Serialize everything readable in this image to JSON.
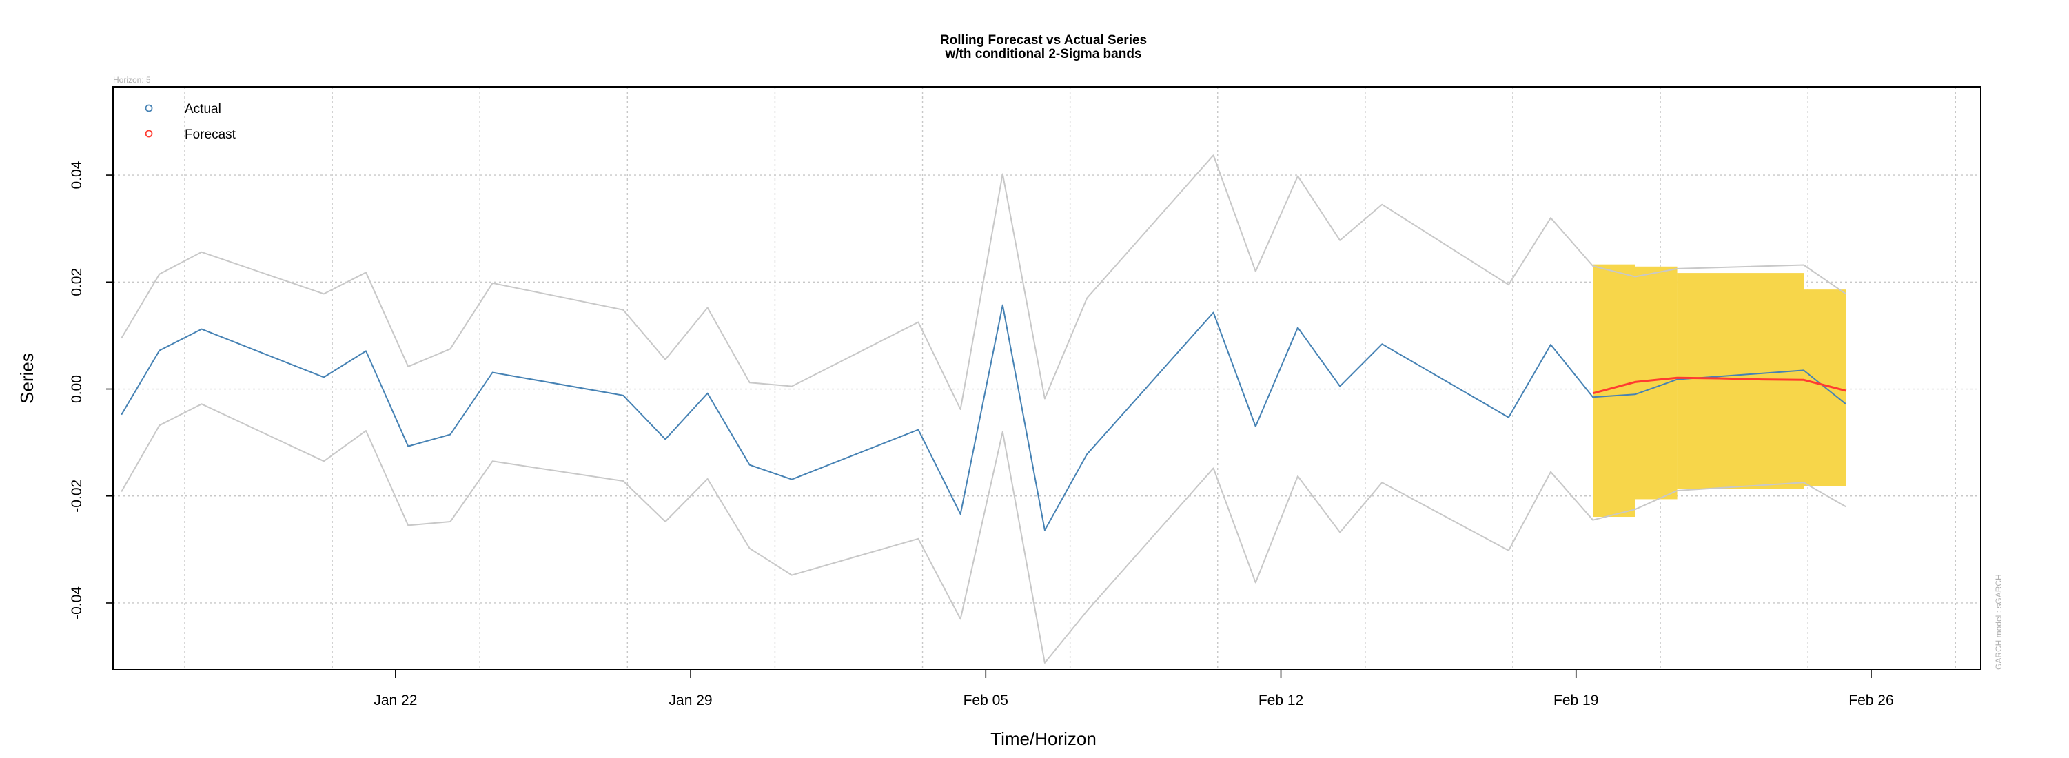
{
  "chart_data": {
    "type": "line",
    "title": "Rolling Forecast vs Actual Series",
    "subtitle": "w/th conditional 2-Sigma bands",
    "xlabel": "Time/Horizon",
    "ylabel": "Series",
    "x_ticks": [
      {
        "day": 5,
        "label": "Jan 22"
      },
      {
        "day": 12,
        "label": "Jan 29"
      },
      {
        "day": 19,
        "label": "Feb 05"
      },
      {
        "day": 26,
        "label": "Feb 12"
      },
      {
        "day": 33,
        "label": "Feb 19"
      },
      {
        "day": 40,
        "label": "Feb 26"
      }
    ],
    "y_ticks": [
      -0.04,
      -0.02,
      0.0,
      0.02,
      0.04
    ],
    "y_tick_labels": [
      "-0.04",
      "-0.02",
      "0.00",
      "0.02",
      "0.04"
    ],
    "xlim": [
      -1.7,
      42.6
    ],
    "ylim": [
      -0.0525,
      0.0565
    ],
    "grid": true,
    "legend_position": "top-left",
    "corner_note": "Horizon: 5",
    "side_note": "GARCH model : sGARCH",
    "colors": {
      "actual": "#4682b4",
      "forecast": "#ff3b30",
      "sigma_lines": "#c8c8c8",
      "forecast_band": "#f7d64a",
      "grid": "#c8c8c8"
    },
    "series": [
      {
        "name": "Actual",
        "points": [
          [
            -1.5,
            -0.0048
          ],
          [
            -0.6,
            0.0072
          ],
          [
            0.4,
            0.0112
          ],
          [
            3.3,
            0.0022
          ],
          [
            4.3,
            0.0071
          ],
          [
            5.3,
            -0.0107
          ],
          [
            6.3,
            -0.0085
          ],
          [
            7.3,
            0.0031
          ],
          [
            10.4,
            -0.0012
          ],
          [
            11.4,
            -0.0094
          ],
          [
            12.4,
            -0.0008
          ],
          [
            13.4,
            -0.0142
          ],
          [
            14.4,
            -0.0169
          ],
          [
            17.4,
            -0.0076
          ],
          [
            18.4,
            -0.0234
          ],
          [
            19.4,
            0.0157
          ],
          [
            20.4,
            -0.0264
          ],
          [
            21.4,
            -0.0122
          ],
          [
            24.4,
            0.0143
          ],
          [
            25.4,
            -0.007
          ],
          [
            26.4,
            0.0115
          ],
          [
            27.4,
            0.0005
          ],
          [
            28.4,
            0.0084
          ],
          [
            31.4,
            -0.0053
          ],
          [
            32.4,
            0.0083
          ],
          [
            33.4,
            -0.0015
          ],
          [
            34.4,
            -0.001
          ],
          [
            35.4,
            0.0018
          ],
          [
            38.4,
            0.0035
          ],
          [
            39.4,
            -0.0028
          ]
        ]
      },
      {
        "name": "Forecast",
        "points": [
          [
            33.4,
            -0.0008
          ],
          [
            34.4,
            0.0013
          ],
          [
            35.4,
            0.0021
          ],
          [
            36.4,
            0.002
          ],
          [
            37.4,
            0.0018
          ],
          [
            38.4,
            0.0017
          ],
          [
            39.4,
            -0.0003
          ]
        ]
      }
    ],
    "sigma_upper": [
      [
        -1.5,
        0.0095
      ],
      [
        -0.6,
        0.0215
      ],
      [
        0.4,
        0.0256
      ],
      [
        3.3,
        0.0178
      ],
      [
        4.3,
        0.0218
      ],
      [
        5.3,
        0.0042
      ],
      [
        6.3,
        0.0075
      ],
      [
        7.3,
        0.0198
      ],
      [
        10.4,
        0.0148
      ],
      [
        11.4,
        0.0055
      ],
      [
        12.4,
        0.0152
      ],
      [
        13.4,
        0.0012
      ],
      [
        14.4,
        0.0005
      ],
      [
        17.4,
        0.0125
      ],
      [
        18.4,
        -0.0038
      ],
      [
        19.4,
        0.0402
      ],
      [
        20.4,
        -0.0018
      ],
      [
        21.4,
        0.017
      ],
      [
        24.4,
        0.0437
      ],
      [
        25.4,
        0.022
      ],
      [
        26.4,
        0.0398
      ],
      [
        27.4,
        0.0278
      ],
      [
        28.4,
        0.0345
      ],
      [
        31.4,
        0.0195
      ],
      [
        32.4,
        0.032
      ],
      [
        33.4,
        0.023
      ],
      [
        34.4,
        0.021
      ],
      [
        35.4,
        0.0225
      ],
      [
        38.4,
        0.0232
      ],
      [
        39.4,
        0.0178
      ]
    ],
    "sigma_lower": [
      [
        -1.5,
        -0.0192
      ],
      [
        -0.6,
        -0.0068
      ],
      [
        0.4,
        -0.0028
      ],
      [
        3.3,
        -0.0135
      ],
      [
        4.3,
        -0.0078
      ],
      [
        5.3,
        -0.0255
      ],
      [
        6.3,
        -0.0248
      ],
      [
        7.3,
        -0.0135
      ],
      [
        10.4,
        -0.0172
      ],
      [
        11.4,
        -0.0248
      ],
      [
        12.4,
        -0.0168
      ],
      [
        13.4,
        -0.0298
      ],
      [
        14.4,
        -0.0348
      ],
      [
        17.4,
        -0.028
      ],
      [
        18.4,
        -0.043
      ],
      [
        19.4,
        -0.008
      ],
      [
        20.4,
        -0.0512
      ],
      [
        21.4,
        -0.0415
      ],
      [
        24.4,
        -0.0148
      ],
      [
        25.4,
        -0.0362
      ],
      [
        26.4,
        -0.0163
      ],
      [
        27.4,
        -0.0268
      ],
      [
        28.4,
        -0.0175
      ],
      [
        31.4,
        -0.0302
      ],
      [
        32.4,
        -0.0155
      ],
      [
        33.4,
        -0.0245
      ],
      [
        34.4,
        -0.0225
      ],
      [
        35.4,
        -0.019
      ],
      [
        38.4,
        -0.0175
      ],
      [
        39.4,
        -0.022
      ]
    ],
    "forecast_band": [
      {
        "x0": 33.4,
        "x1": 34.4,
        "lower": -0.0239,
        "upper": 0.0233
      },
      {
        "x0": 34.4,
        "x1": 35.4,
        "lower": -0.0206,
        "upper": 0.0229
      },
      {
        "x0": 35.4,
        "x1": 38.4,
        "lower": -0.0187,
        "upper": 0.0217
      },
      {
        "x0": 38.4,
        "x1": 39.4,
        "lower": -0.0181,
        "upper": 0.0186
      }
    ]
  }
}
